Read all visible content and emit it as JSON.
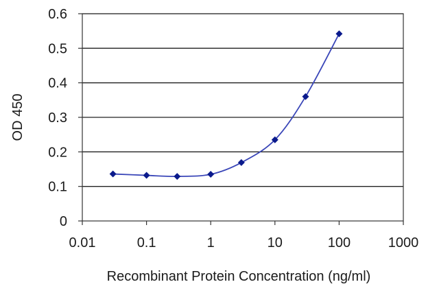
{
  "chart_data": {
    "type": "line",
    "title": "",
    "xlabel": "Recombinant Protein Concentration (ng/ml)",
    "ylabel": "OD 450",
    "x_scale": "log",
    "xlim": [
      0.01,
      1000
    ],
    "ylim": [
      0,
      0.6
    ],
    "x_ticks": [
      "0.01",
      "0.1",
      "1",
      "10",
      "100",
      "1000"
    ],
    "y_ticks": [
      "0",
      "0.1",
      "0.2",
      "0.3",
      "0.4",
      "0.5",
      "0.6"
    ],
    "grid": "horizontal",
    "legend": "none",
    "series": [
      {
        "x": [
          0.03,
          0.1,
          0.3,
          1,
          3,
          10,
          30,
          100
        ],
        "y": [
          0.136,
          0.132,
          0.129,
          0.135,
          0.169,
          0.235,
          0.36,
          0.542
        ],
        "color": "#3a46b8",
        "marker": "diamond",
        "marker_color": "#0a1a8c"
      }
    ]
  }
}
